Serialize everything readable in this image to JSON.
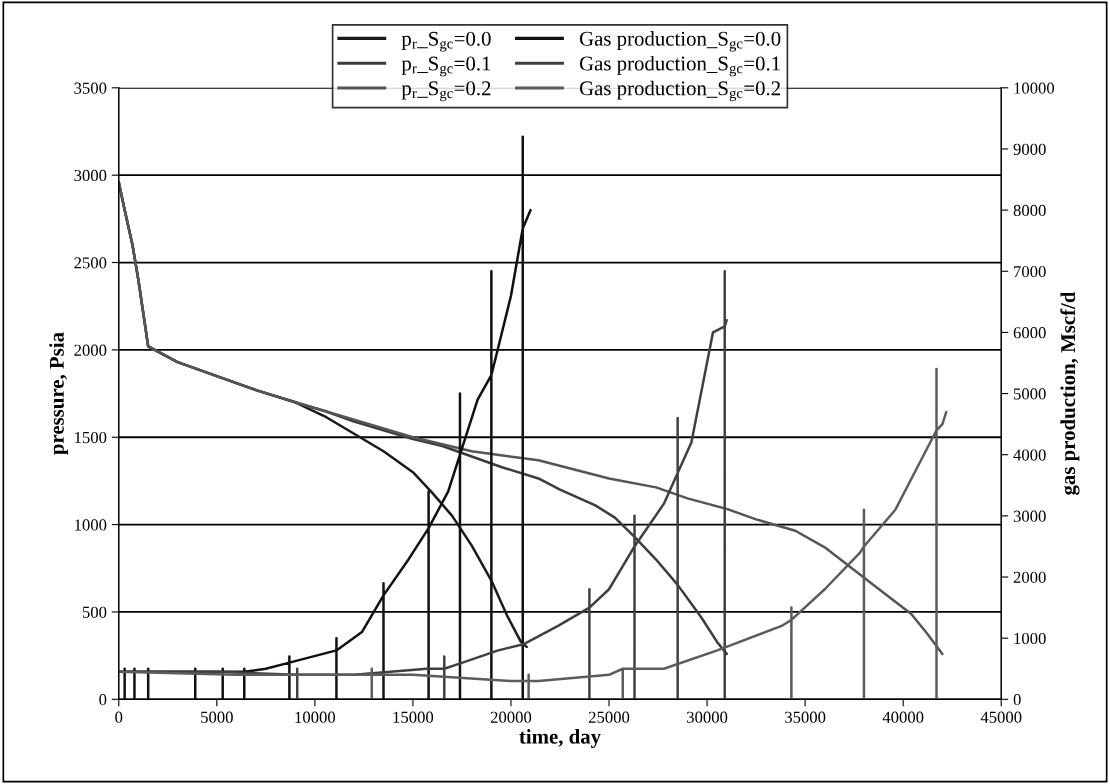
{
  "chart_data": {
    "type": "line",
    "xlabel": "time, day",
    "ylabel": "pressure, Psia",
    "y2label": "gas production, Mscf/d",
    "xlim": [
      0,
      45000
    ],
    "xticks": [
      0,
      5000,
      10000,
      15000,
      20000,
      25000,
      30000,
      35000,
      40000,
      45000
    ],
    "ylim": [
      0,
      3500
    ],
    "yticks": [
      0,
      500,
      1000,
      1500,
      2000,
      2500,
      3000,
      3500
    ],
    "y2lim": [
      0,
      10000
    ],
    "y2ticks": [
      0,
      1000,
      2000,
      3000,
      4000,
      5000,
      6000,
      7000,
      8000,
      9000,
      10000
    ],
    "grid": "y",
    "legend": "top",
    "marker": "none",
    "line_style": "solid",
    "series": [
      {
        "name": "p$_{r}$_S$_{gc}$=0.0",
        "color": "#1a1a1a",
        "x": [
          0,
          300,
          700,
          1000,
          1500,
          3000,
          5000,
          7000,
          9000,
          10500,
          12000,
          13500,
          15000,
          16000,
          17000,
          18000,
          19000,
          19800,
          20500,
          20800
        ],
        "values": [
          2960,
          2800,
          2600,
          2400,
          2020,
          1930,
          1850,
          1770,
          1700,
          1620,
          1520,
          1420,
          1300,
          1180,
          1050,
          880,
          680,
          480,
          330,
          300
        ]
      },
      {
        "name": "p$_{r}$_S$_{gc}$=0.1",
        "color": "#3c3c3c",
        "x": [
          0,
          300,
          700,
          1000,
          1500,
          3000,
          5000,
          7000,
          9000,
          10500,
          12000,
          13500,
          15000,
          16500,
          18000,
          19500,
          21400,
          22500,
          24300,
          25300,
          26300,
          27400,
          28500,
          29700,
          30500,
          31000
        ],
        "values": [
          2960,
          2800,
          2600,
          2400,
          2020,
          1930,
          1850,
          1770,
          1700,
          1650,
          1590,
          1540,
          1490,
          1450,
          1390,
          1330,
          1264,
          1200,
          1110,
          1040,
          930,
          800,
          655,
          470,
          330,
          260
        ]
      },
      {
        "name": "p$_{r}$_S$_{gc}$=0.2",
        "color": "#555555",
        "x": [
          0,
          300,
          700,
          1000,
          1500,
          3000,
          5000,
          7000,
          9000,
          12000,
          15000,
          18000,
          21400,
          25000,
          27400,
          29000,
          31000,
          32500,
          34500,
          36000,
          37500,
          39000,
          40400,
          41200,
          42000
        ],
        "values": [
          2960,
          2800,
          2600,
          2400,
          2020,
          1930,
          1850,
          1770,
          1700,
          1600,
          1500,
          1420,
          1368,
          1264,
          1213,
          1150,
          1090,
          1030,
          965,
          870,
          740,
          610,
          490,
          380,
          260
        ]
      },
      {
        "name": "Gas production_S$_{gc}$=0.0",
        "color": "#111111",
        "axis": "y2",
        "x": [
          0,
          300,
          300,
          300,
          300,
          800,
          800,
          800,
          800,
          1500,
          1500,
          1500,
          1500,
          3900,
          3900,
          3900,
          3900,
          5300,
          5300,
          5300,
          5300,
          6400,
          6400,
          6400,
          6400,
          7500,
          8700,
          8700,
          8700,
          8700,
          11100,
          11100,
          11100,
          11100,
          12400,
          13500,
          13500,
          13500,
          13500,
          14800,
          15800,
          15800,
          15800,
          15800,
          16800,
          17400,
          17400,
          17400,
          17400,
          18300,
          19000,
          19000,
          19000,
          19000,
          20000,
          20600,
          20600,
          20600,
          20600,
          21000
        ],
        "values": [
          450,
          450,
          500,
          0,
          450,
          450,
          500,
          0,
          450,
          450,
          500,
          0,
          450,
          450,
          500,
          0,
          450,
          450,
          500,
          0,
          450,
          450,
          500,
          0,
          450,
          500,
          600,
          700,
          0,
          600,
          800,
          1000,
          0,
          800,
          1100,
          1700,
          1900,
          0,
          1700,
          2300,
          2800,
          3400,
          0,
          2800,
          3400,
          4000,
          5000,
          0,
          4000,
          4900,
          5300,
          7000,
          0,
          5300,
          6600,
          7700,
          9200,
          0,
          7700,
          8000
        ]
      },
      {
        "name": "Gas production_S$_{gc}$=0.1",
        "color": "#404040",
        "axis": "y2",
        "x": [
          0,
          5000,
          9100,
          9100,
          9100,
          9100,
          12000,
          15700,
          16600,
          16600,
          16600,
          16600,
          17530,
          19350,
          20630,
          22400,
          24000,
          24000,
          24000,
          24000,
          25000,
          26300,
          26300,
          26300,
          26300,
          27800,
          28500,
          28500,
          28500,
          28500,
          29200,
          30300,
          30900,
          30900,
          30900,
          30900,
          31000
        ],
        "values": [
          450,
          450,
          400,
          500,
          0,
          400,
          400,
          500,
          500,
          700,
          0,
          500,
          600,
          800,
          900,
          1200,
          1500,
          1800,
          0,
          1500,
          1800,
          2500,
          3000,
          0,
          2500,
          3200,
          3700,
          4600,
          0,
          3700,
          4200,
          6000,
          6100,
          7000,
          0,
          6100,
          6200
        ]
      },
      {
        "name": "Gas production_S$_{gc}$=0.2",
        "color": "#5c5c5c",
        "axis": "y2",
        "x": [
          0,
          6000,
          10000,
          12900,
          12900,
          12900,
          12900,
          15000,
          20000,
          20900,
          20900,
          20900,
          20900,
          21400,
          25000,
          25700,
          25700,
          25700,
          25700,
          27800,
          30520,
          33800,
          34300,
          34300,
          34300,
          34300,
          36000,
          37800,
          38000,
          38000,
          38000,
          38000,
          39600,
          41700,
          41700,
          41700,
          41700,
          42000,
          42200
        ],
        "values": [
          450,
          400,
          400,
          400,
          500,
          0,
          400,
          400,
          300,
          300,
          400,
          0,
          300,
          300,
          400,
          500,
          500,
          0,
          500,
          500,
          800,
          1200,
          1300,
          1500,
          0,
          1300,
          1800,
          2400,
          2500,
          3100,
          0,
          2500,
          3100,
          4400,
          5400,
          0,
          4400,
          4500,
          4700
        ]
      }
    ]
  }
}
